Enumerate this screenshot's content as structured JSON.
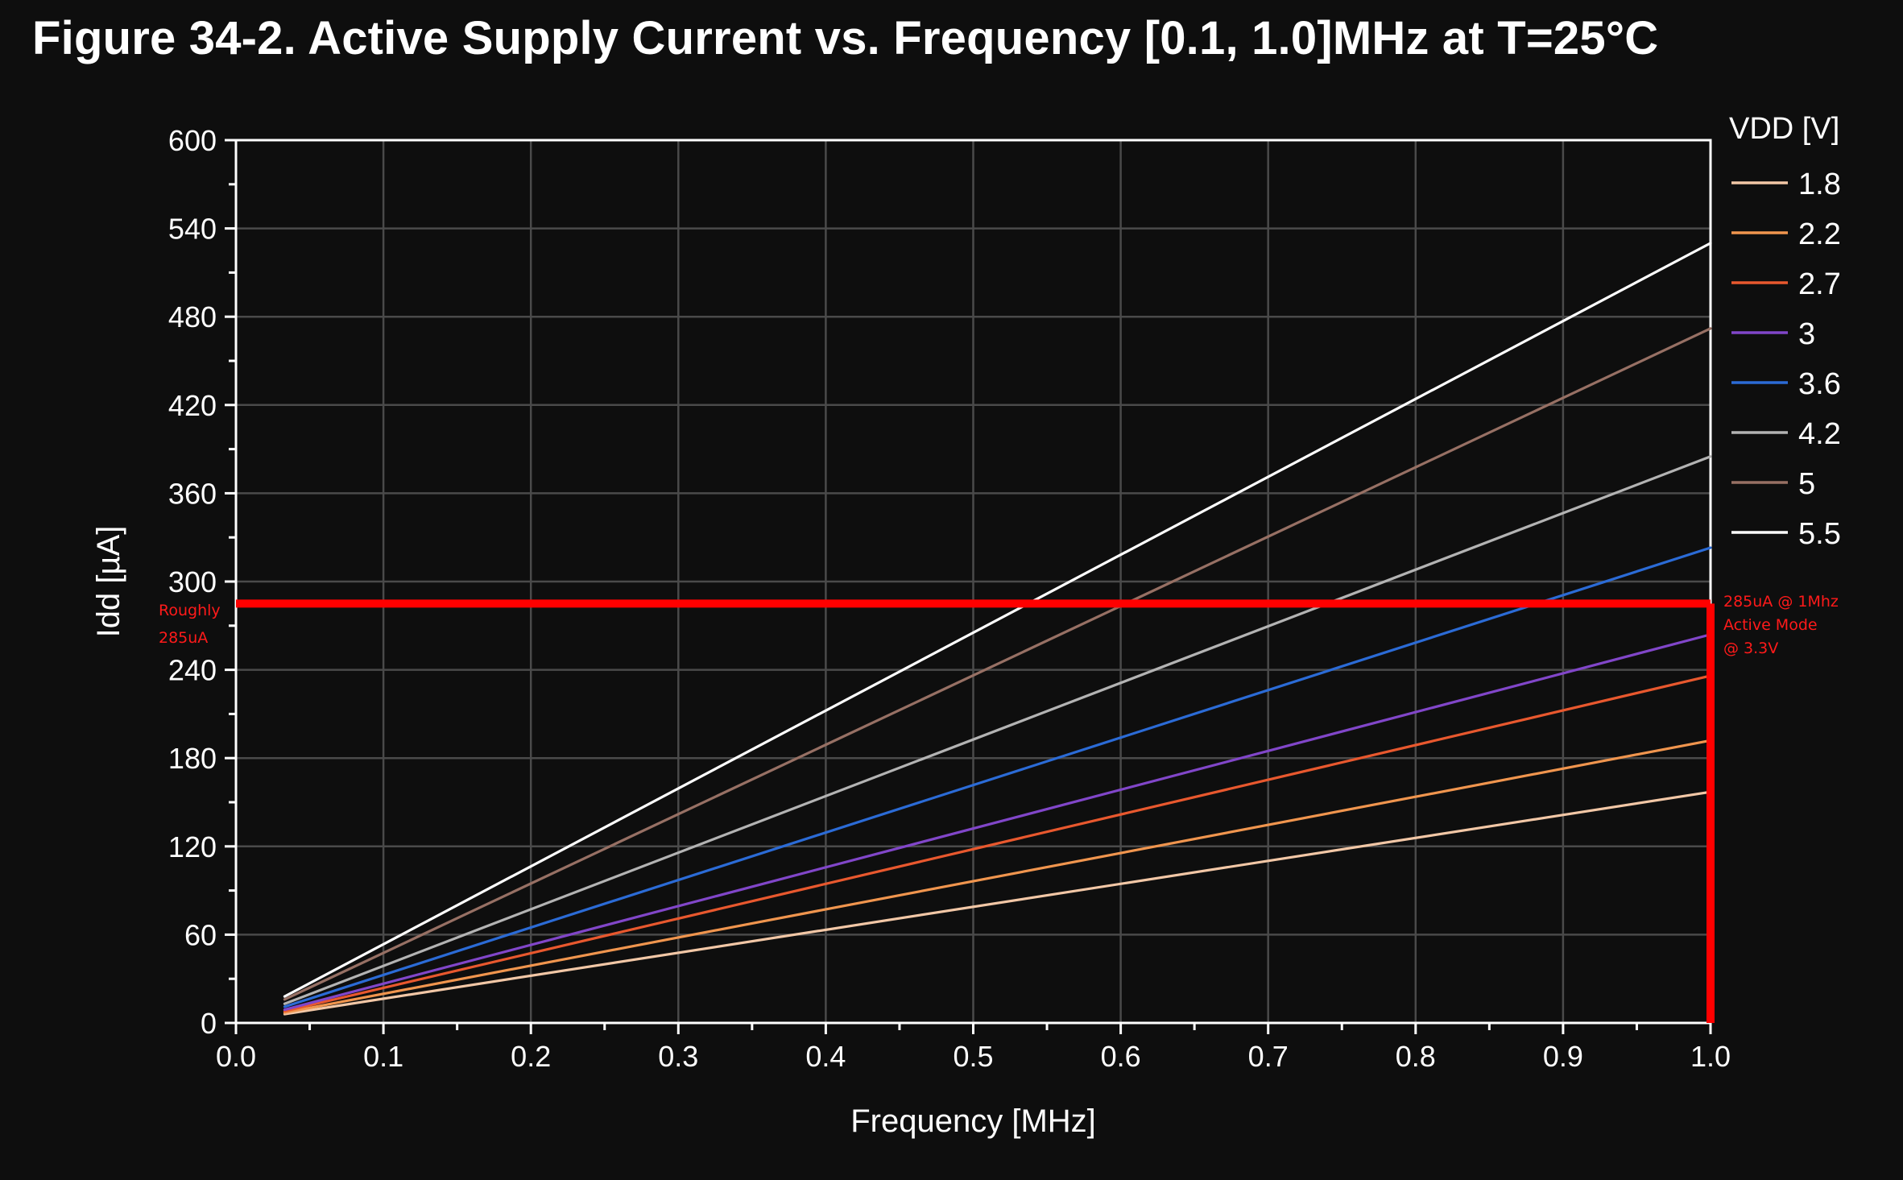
{
  "title": "Figure 34-2.  Active Supply Current vs. Frequency [0.1, 1.0]MHz at T=25°C",
  "chart_data": {
    "type": "line",
    "xlabel": "Frequency [MHz]",
    "ylabel": "Idd [µA]",
    "xlim": [
      0.0,
      1.0
    ],
    "ylim": [
      0,
      600
    ],
    "xticks": [
      "0.0",
      "0.1",
      "0.2",
      "0.3",
      "0.4",
      "0.5",
      "0.6",
      "0.7",
      "0.8",
      "0.9",
      "1.0"
    ],
    "yticks": [
      "0",
      "60",
      "120",
      "180",
      "240",
      "300",
      "360",
      "420",
      "480",
      "540",
      "600"
    ],
    "grid": true,
    "legend": {
      "title": "VDD [V]",
      "placement": "right"
    },
    "series": [
      {
        "name": "1.8",
        "color": "#f2c7a6",
        "x": [
          0.033,
          1.0
        ],
        "y": [
          6,
          157
        ]
      },
      {
        "name": "2.2",
        "color": "#f0954e",
        "x": [
          0.033,
          1.0
        ],
        "y": [
          7,
          192
        ]
      },
      {
        "name": "2.7",
        "color": "#e8582e",
        "x": [
          0.033,
          1.0
        ],
        "y": [
          8,
          236
        ]
      },
      {
        "name": "3",
        "color": "#8146c9",
        "x": [
          0.033,
          1.0
        ],
        "y": [
          9,
          264
        ]
      },
      {
        "name": "3.6",
        "color": "#2b6bd6",
        "x": [
          0.033,
          1.0
        ],
        "y": [
          11,
          323
        ]
      },
      {
        "name": "4.2",
        "color": "#b3b3b3",
        "x": [
          0.033,
          1.0
        ],
        "y": [
          13,
          385
        ]
      },
      {
        "name": "5",
        "color": "#977064",
        "x": [
          0.033,
          1.0
        ],
        "y": [
          16,
          472
        ]
      },
      {
        "name": "5.5",
        "color": "#ffffff",
        "x": [
          0.033,
          1.0
        ],
        "y": [
          18,
          530
        ]
      }
    ],
    "annotations": {
      "color": "#ff0000",
      "hline_value": 285,
      "vline_value": 1.0,
      "left_text": [
        "Roughly",
        "285uA"
      ],
      "right_text": [
        "285uA @ 1Mhz",
        "Active Mode",
        "@ 3.3V"
      ]
    }
  }
}
